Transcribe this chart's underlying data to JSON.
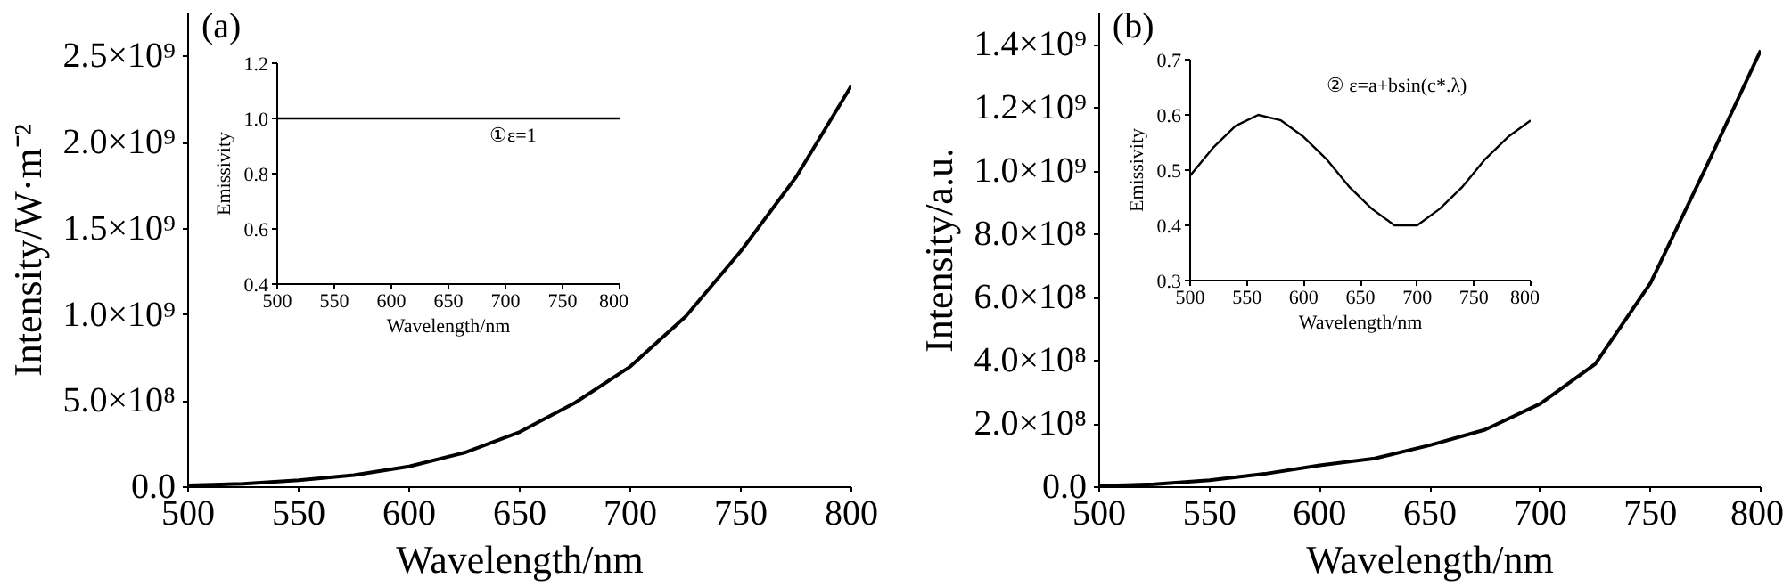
{
  "chart_data": [
    {
      "type": "line",
      "xlabel": "Wavelength/nm",
      "ylabel": "Intensity/W·m⁻²",
      "annotations": [
        "(a)"
      ],
      "grid": false,
      "xlim": [
        500,
        800
      ],
      "xticks": [
        500,
        550,
        600,
        650,
        700,
        750,
        800
      ],
      "ylim": [
        0,
        2750000000
      ],
      "yticks": [
        {
          "value": 0,
          "label": "0.0"
        },
        {
          "value": 500000000,
          "label": "5.0×10⁸"
        },
        {
          "value": 1000000000,
          "label": "1.0×10⁹"
        },
        {
          "value": 1500000000,
          "label": "1.5×10⁹"
        },
        {
          "value": 2000000000,
          "label": "2.0×10⁹"
        },
        {
          "value": 2500000000,
          "label": "2.5×10⁹"
        }
      ],
      "x": [
        500,
        525,
        550,
        575,
        600,
        625,
        650,
        675,
        700,
        725,
        750,
        775,
        800
      ],
      "series": [
        {
          "color": "#000000",
          "values": [
            10000000,
            20000000,
            40000000,
            70000000,
            120000000,
            200000000,
            320000000,
            490000000,
            700000000,
            990000000,
            1370000000,
            1800000000,
            2330000000
          ]
        }
      ]
    },
    {
      "type": "line",
      "xlabel": "Wavelength/nm",
      "ylabel": "Emissivity",
      "annotations": [
        "①ε=1"
      ],
      "grid": false,
      "xlim": [
        500,
        800
      ],
      "xticks": [
        500,
        550,
        600,
        650,
        700,
        750,
        800
      ],
      "ylim": [
        0.4,
        1.2
      ],
      "yticks": [
        {
          "value": 0.4,
          "label": "0.4"
        },
        {
          "value": 0.6,
          "label": "0.6"
        },
        {
          "value": 0.8,
          "label": "0.8"
        },
        {
          "value": 1.0,
          "label": "1.0"
        },
        {
          "value": 1.2,
          "label": "1.2"
        }
      ],
      "x": [
        500,
        800
      ],
      "series": [
        {
          "color": "#000000",
          "values": [
            1.0,
            1.0
          ]
        }
      ]
    },
    {
      "type": "line",
      "xlabel": "Wavelength/nm",
      "ylabel": "Intensity/a.u.",
      "annotations": [
        "(b)"
      ],
      "grid": false,
      "xlim": [
        500,
        800
      ],
      "xticks": [
        500,
        550,
        600,
        650,
        700,
        750,
        800
      ],
      "ylim": [
        0,
        1500000000
      ],
      "yticks": [
        {
          "value": 0,
          "label": "0.0"
        },
        {
          "value": 200000000,
          "label": "2.0×10⁸"
        },
        {
          "value": 400000000,
          "label": "4.0×10⁸"
        },
        {
          "value": 600000000,
          "label": "6.0×10⁸"
        },
        {
          "value": 800000000,
          "label": "8.0×10⁸"
        },
        {
          "value": 1000000000,
          "label": "1.0×10⁹"
        },
        {
          "value": 1200000000,
          "label": "1.2×10⁹"
        },
        {
          "value": 1400000000,
          "label": "1.4×10⁹"
        }
      ],
      "x": [
        500,
        525,
        550,
        575,
        600,
        625,
        650,
        675,
        700,
        725,
        750,
        775,
        800
      ],
      "series": [
        {
          "color": "#000000",
          "values": [
            4000000,
            9000000,
            22000000,
            42000000,
            69000000,
            91000000,
            133000000,
            182000000,
            264000000,
            390000000,
            646000000,
            1010000000,
            1383000000
          ]
        }
      ]
    },
    {
      "type": "line",
      "xlabel": "Wavelength/nm",
      "ylabel": "Emissivity",
      "annotations": [
        "②  ε=a+bsin(c*.λ)"
      ],
      "grid": false,
      "xlim": [
        500,
        800
      ],
      "xticks": [
        500,
        550,
        600,
        650,
        700,
        750,
        800
      ],
      "ylim": [
        0.3,
        0.7
      ],
      "yticks": [
        0.3,
        0.4,
        0.5,
        0.6,
        0.7
      ],
      "x": [
        500,
        520,
        540,
        560,
        580,
        600,
        620,
        640,
        660,
        680,
        700,
        720,
        740,
        760,
        780,
        800
      ],
      "series": [
        {
          "color": "#000000",
          "values": [
            0.49,
            0.54,
            0.58,
            0.6,
            0.59,
            0.56,
            0.52,
            0.47,
            0.43,
            0.4,
            0.4,
            0.43,
            0.47,
            0.52,
            0.56,
            0.59
          ]
        }
      ]
    }
  ]
}
